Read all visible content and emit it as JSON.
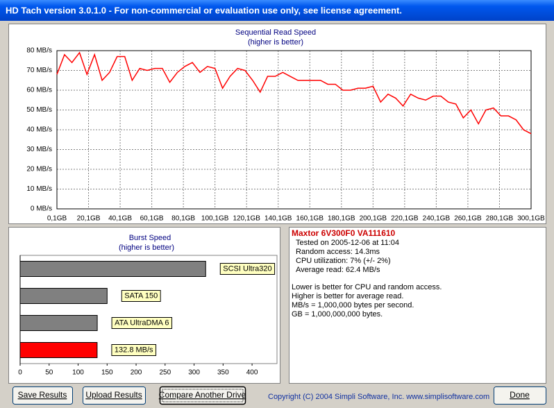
{
  "window": {
    "title": "HD Tach version 3.0.1.0  - For non-commercial or evaluation use only, see license agreement."
  },
  "chart_data": [
    {
      "type": "line",
      "title": "Sequential Read Speed",
      "subtitle": "(higher is better)",
      "color": "#ff0000",
      "grid": true,
      "x": [
        0.1,
        4.9,
        9.6,
        14.4,
        19.1,
        23.9,
        28.7,
        33.4,
        38.2,
        43.0,
        47.7,
        52.5,
        57.2,
        62.0,
        66.8,
        71.5,
        76.3,
        81.0,
        85.8,
        90.6,
        95.3,
        100.1,
        104.9,
        109.6,
        114.4,
        119.1,
        123.9,
        128.7,
        133.4,
        138.2,
        143.0,
        147.7,
        152.5,
        157.2,
        162.0,
        166.8,
        171.5,
        176.3,
        181.0,
        185.8,
        190.6,
        195.3,
        200.1,
        204.9,
        209.6,
        214.4,
        219.1,
        223.9,
        228.7,
        233.4,
        238.2,
        243.0,
        247.7,
        252.5,
        257.2,
        262.0,
        266.8,
        271.5,
        276.3,
        281.0,
        285.8,
        290.6,
        295.3,
        300.1
      ],
      "values": [
        68,
        78,
        74,
        79,
        68,
        78,
        65,
        69,
        77,
        77,
        65,
        71,
        70,
        71,
        71,
        64,
        69,
        72,
        74,
        69,
        72,
        71,
        61,
        67,
        71,
        70,
        65,
        59,
        67,
        67,
        69,
        67,
        65,
        65,
        65,
        65,
        63,
        63,
        60,
        60,
        61,
        61,
        62,
        54,
        58,
        56,
        52,
        58,
        56,
        55,
        57,
        57,
        54,
        53,
        46,
        50,
        43,
        50,
        51,
        47,
        47,
        45,
        40,
        38
      ],
      "xlim": [
        0.1,
        300.1
      ],
      "ylim": [
        0,
        80
      ],
      "xticks": [
        {
          "value": 0.1,
          "label": "0,1GB"
        },
        {
          "value": 20.1,
          "label": "20,1GB"
        },
        {
          "value": 40.1,
          "label": "40,1GB"
        },
        {
          "value": 60.1,
          "label": "60,1GB"
        },
        {
          "value": 80.1,
          "label": "80,1GB"
        },
        {
          "value": 100.1,
          "label": "100,1GB"
        },
        {
          "value": 120.1,
          "label": "120,1GB"
        },
        {
          "value": 140.1,
          "label": "140,1GB"
        },
        {
          "value": 160.1,
          "label": "160,1GB"
        },
        {
          "value": 180.1,
          "label": "180,1GB"
        },
        {
          "value": 200.1,
          "label": "200,1GB"
        },
        {
          "value": 220.1,
          "label": "220,1GB"
        },
        {
          "value": 240.1,
          "label": "240,1GB"
        },
        {
          "value": 260.1,
          "label": "260,1GB"
        },
        {
          "value": 280.1,
          "label": "280,1GB"
        },
        {
          "value": 300.1,
          "label": "300,1GB"
        }
      ],
      "yticks": [
        {
          "value": 0,
          "label": "0 MB/s"
        },
        {
          "value": 10,
          "label": "10 MB/s"
        },
        {
          "value": 20,
          "label": "20 MB/s"
        },
        {
          "value": 30,
          "label": "30 MB/s"
        },
        {
          "value": 40,
          "label": "40 MB/s"
        },
        {
          "value": 50,
          "label": "50 MB/s"
        },
        {
          "value": 60,
          "label": "60 MB/s"
        },
        {
          "value": 70,
          "label": "70 MB/s"
        },
        {
          "value": 80,
          "label": "80 MB/s"
        }
      ]
    },
    {
      "type": "hbar",
      "title": "Burst Speed",
      "subtitle": "(higher is better)",
      "categories": [
        "SCSI Ultra320",
        "SATA 150",
        "ATA UltraDMA 6",
        null
      ],
      "values": [
        320,
        150,
        133,
        132.8
      ],
      "value_labels": [
        null,
        null,
        null,
        "132.8 MB/s"
      ],
      "colors": [
        "#808080",
        "#808080",
        "#808080",
        "#ff0000"
      ],
      "xlim": [
        0,
        443
      ],
      "xticks": [
        0,
        50,
        100,
        150,
        200,
        250,
        300,
        350,
        400
      ]
    }
  ],
  "info": {
    "drive": "Maxtor 6V300F0 VA111610",
    "details": [
      "Tested on 2005-12-06 at 11:04",
      "Random access: 14.3ms",
      "CPU utilization: 7% (+/- 2%)",
      "Average read: 62.4 MB/s"
    ],
    "notes": [
      "Lower is better for CPU and random access.",
      "Higher is better for average read.",
      "MB/s = 1,000,000 bytes per second.",
      "GB = 1,000,000,000 bytes."
    ]
  },
  "buttons": [
    "Save Results",
    "Upload Results",
    "Compare Another Drive",
    "Done"
  ],
  "copyright": "Copyright (C) 2004 Simpli Software, Inc. www.simplisoftware.com"
}
